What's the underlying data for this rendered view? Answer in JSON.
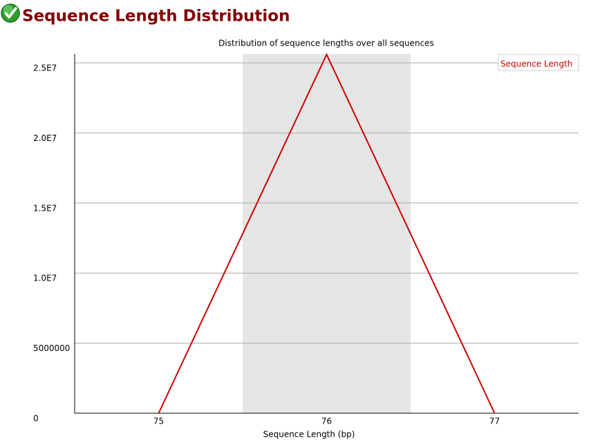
{
  "chart_data": {
    "type": "line",
    "title": "Sequence Length Distribution",
    "subtitle": "Distribution of sequence lengths over all sequences",
    "x_label": "Sequence Length (bp)",
    "categories": [
      "75",
      "76",
      "77"
    ],
    "series": [
      {
        "name": "Sequence Length",
        "color": "#cc0000",
        "values": [
          0,
          25600000,
          0
        ]
      }
    ],
    "ylim": [
      0,
      25640000
    ],
    "yticks": [
      0,
      5000000,
      {
        "value": 10000000,
        "label": "1.0E7"
      },
      {
        "value": 15000000,
        "label": "1.5E7"
      },
      {
        "value": 20000000,
        "label": "2.0E7"
      },
      {
        "value": 25000000,
        "label": "2.5E7"
      }
    ],
    "grid": true,
    "legend": "top-right"
  }
}
